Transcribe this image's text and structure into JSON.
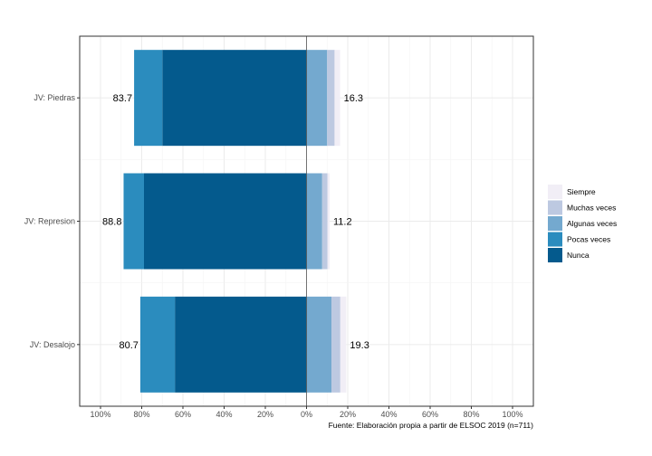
{
  "chart_data": {
    "type": "bar",
    "orientation": "horizontal",
    "stacked": "diverging",
    "categories": [
      "JV: Piedras",
      "JV: Represion",
      "JV: Desalojo"
    ],
    "series": [
      {
        "name": "Nunca",
        "color": "#045a8d",
        "side": "left",
        "values": [
          -70.0,
          -78.9,
          -63.9
        ]
      },
      {
        "name": "Pocas veces",
        "color": "#2b8cbe",
        "side": "left",
        "values": [
          -13.7,
          -9.9,
          -16.8
        ]
      },
      {
        "name": "Algunas veces",
        "color": "#74a9cf",
        "side": "right",
        "values": [
          10.0,
          7.6,
          12.1
        ]
      },
      {
        "name": "Muchas veces",
        "color": "#bdc9e1",
        "side": "right",
        "values": [
          3.6,
          2.6,
          4.3
        ]
      },
      {
        "name": "Siempre",
        "color": "#f1eef6",
        "side": "right",
        "values": [
          2.7,
          1.0,
          2.9
        ]
      }
    ],
    "left_totals": [
      "83.7",
      "88.8",
      "80.7"
    ],
    "right_totals": [
      "16.3",
      "11.2",
      "19.3"
    ],
    "xlim": [
      -100,
      100
    ],
    "x_ticks": [
      -100,
      -80,
      -60,
      -40,
      -20,
      0,
      20,
      40,
      60,
      80,
      100
    ],
    "x_tick_labels": [
      "100%",
      "80%",
      "60%",
      "40%",
      "20%",
      "0%",
      "20%",
      "40%",
      "60%",
      "80%",
      "100%"
    ],
    "caption": "Fuente: Elaboración propia  a partir de ELSOC 2019 (n=711)",
    "legend_position": "right",
    "legend_order": [
      "Siempre",
      "Muchas veces",
      "Algunas veces",
      "Pocas veces",
      "Nunca"
    ],
    "grid": true,
    "title": "",
    "xlabel": "",
    "ylabel": ""
  }
}
